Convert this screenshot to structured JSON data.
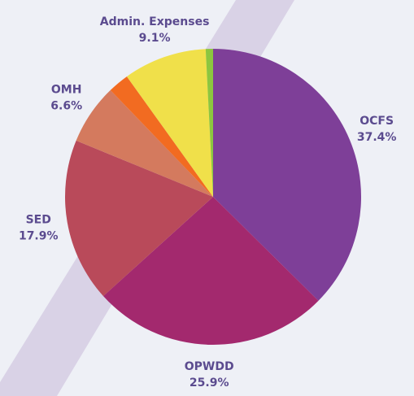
{
  "chart_data": {
    "type": "pie",
    "categories": [
      "OCFS",
      "OPWDD",
      "SED",
      "OMH",
      null,
      "Admin. Expenses",
      null
    ],
    "values": [
      37.4,
      25.9,
      17.9,
      6.6,
      2.3,
      9.1,
      0.8
    ],
    "value_labels": [
      "37.4%",
      "25.9%",
      "17.9%",
      "6.6%",
      null,
      "9.1%",
      null
    ],
    "colors": [
      "#7e3f98",
      "#a3296e",
      "#b94a5a",
      "#d47a5e",
      "#f26b21",
      "#f0e04a",
      "#8cc63f"
    ]
  }
}
